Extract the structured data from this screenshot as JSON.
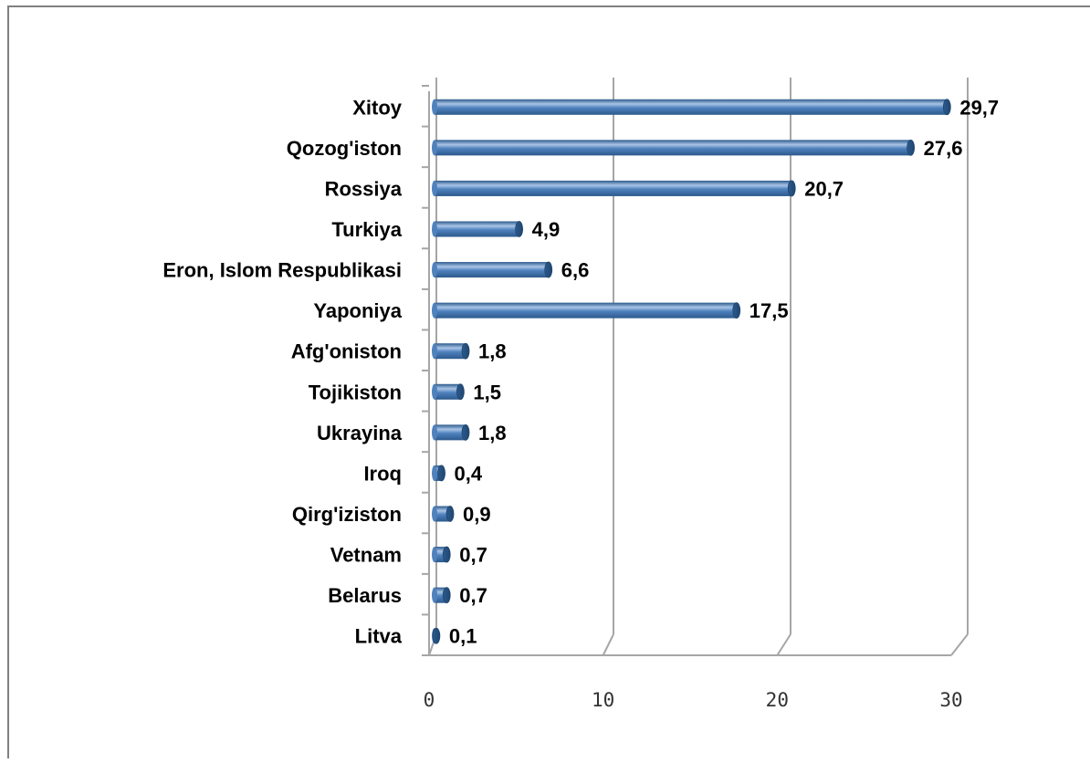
{
  "chart_data": {
    "type": "bar",
    "orientation": "horizontal",
    "style": "3d-cylinder",
    "categories": [
      "Xitoy",
      "Qozog'iston",
      "Rossiya",
      "Turkiya",
      "Eron, Islom Respublikasi",
      "Yaponiya",
      "Afg'oniston",
      "Tojikiston",
      "Ukrayina",
      "Iroq",
      "Qirg'iziston",
      "Vetnam",
      "Belarus",
      "Litva"
    ],
    "values": [
      29.7,
      27.6,
      20.7,
      4.9,
      6.6,
      17.5,
      1.8,
      1.5,
      1.8,
      0.4,
      0.9,
      0.7,
      0.7,
      0.1
    ],
    "value_labels": [
      "29,7",
      "27,6",
      "20,7",
      "4,9",
      "6,6",
      "17,5",
      "1,8",
      "1,5",
      "1,8",
      "0,4",
      "0,9",
      "0,7",
      "0,7",
      "0,1"
    ],
    "x_ticks": [
      0,
      10,
      20,
      30
    ],
    "xlim": [
      0,
      30
    ],
    "grid": true,
    "legend": "none",
    "colors": {
      "bar": "#4f81bd",
      "bar_dark": "#2c5a8c",
      "bar_light": "#a9c4e6",
      "grid": "#a6a6a6"
    }
  }
}
